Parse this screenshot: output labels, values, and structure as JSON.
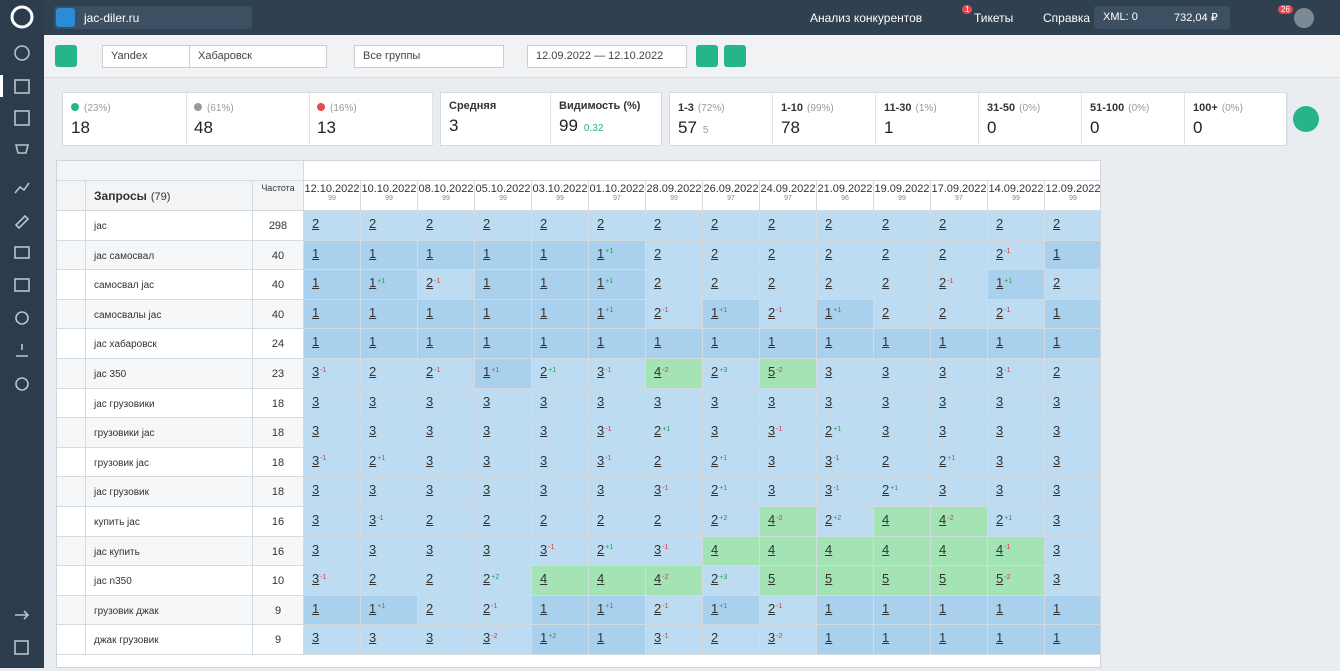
{
  "header": {
    "project": "jac-diler.ru",
    "nav": [
      "Анализ конкурентов",
      "Тикеты",
      "Справка"
    ],
    "tickets_badge": "1",
    "xml": "XML: 0",
    "balance": "732,04 ₽",
    "notifications_badge": "26"
  },
  "toolbar": {
    "engine": "Yandex",
    "region": "Хабаровск",
    "group": "Все группы",
    "period": "12.09.2022 — 12.10.2022"
  },
  "summary": {
    "dynamics": [
      {
        "percent": "(23%)",
        "value": "18"
      },
      {
        "percent": "(61%)",
        "value": "48"
      },
      {
        "percent": "(16%)",
        "value": "13"
      }
    ],
    "average": {
      "label": "Средняя",
      "value": "3"
    },
    "visibility": {
      "label": "Видимость (%)",
      "value": "99",
      "change": "0.32"
    },
    "ranges": [
      {
        "label": "1-3",
        "percent": "(72%)",
        "value": "57",
        "extra": "5"
      },
      {
        "label": "1-10",
        "percent": "(99%)",
        "value": "78"
      },
      {
        "label": "11-30",
        "percent": "(1%)",
        "value": "1"
      },
      {
        "label": "31-50",
        "percent": "(0%)",
        "value": "0"
      },
      {
        "label": "51-100",
        "percent": "(0%)",
        "value": "0"
      },
      {
        "label": "100+",
        "percent": "(0%)",
        "value": "0"
      }
    ]
  },
  "table": {
    "query_header": "Запросы",
    "query_count": "(79)",
    "frequency_header": "Частота",
    "dates": [
      {
        "date": "12.10.2022",
        "score": "99"
      },
      {
        "date": "10.10.2022",
        "score": "99"
      },
      {
        "date": "08.10.2022",
        "score": "99"
      },
      {
        "date": "05.10.2022",
        "score": "99"
      },
      {
        "date": "03.10.2022",
        "score": "99"
      },
      {
        "date": "01.10.2022",
        "score": "97"
      },
      {
        "date": "28.09.2022",
        "score": "99"
      },
      {
        "date": "26.09.2022",
        "score": "97"
      },
      {
        "date": "24.09.2022",
        "score": "97"
      },
      {
        "date": "21.09.2022",
        "score": "96"
      },
      {
        "date": "19.09.2022",
        "score": "99"
      },
      {
        "date": "17.09.2022",
        "score": "97"
      },
      {
        "date": "14.09.2022",
        "score": "99"
      },
      {
        "date": "12.09.2022",
        "score": "99"
      }
    ],
    "rows": [
      {
        "query": "jac",
        "frequency": "298",
        "positions": [
          2,
          2,
          2,
          2,
          2,
          2,
          2,
          2,
          2,
          2,
          2,
          2,
          2,
          2
        ],
        "changes": [
          null,
          null,
          null,
          null,
          null,
          null,
          null,
          null,
          null,
          null,
          null,
          null,
          null,
          null
        ]
      },
      {
        "query": "jac самосвал",
        "frequency": "40",
        "positions": [
          1,
          1,
          1,
          1,
          1,
          1,
          2,
          2,
          2,
          2,
          2,
          2,
          2,
          1
        ],
        "changes": [
          null,
          null,
          null,
          null,
          null,
          "+1",
          null,
          null,
          null,
          null,
          null,
          null,
          "-1",
          null
        ]
      },
      {
        "query": "самосвал jac",
        "frequency": "40",
        "positions": [
          1,
          1,
          2,
          1,
          1,
          1,
          2,
          2,
          2,
          2,
          2,
          2,
          1,
          2
        ],
        "changes": [
          null,
          "+1",
          "-1",
          null,
          null,
          "+1",
          null,
          null,
          null,
          null,
          null,
          "-1",
          "+1",
          null
        ]
      },
      {
        "query": "самосвалы jac",
        "frequency": "40",
        "positions": [
          1,
          1,
          1,
          1,
          1,
          1,
          2,
          1,
          2,
          1,
          2,
          2,
          2,
          1
        ],
        "changes": [
          null,
          null,
          null,
          null,
          null,
          "+1",
          "-1",
          "+1",
          "-1",
          "+1",
          null,
          null,
          "-1",
          null
        ]
      },
      {
        "query": "jac хабаровск",
        "frequency": "24",
        "positions": [
          1,
          1,
          1,
          1,
          1,
          1,
          1,
          1,
          1,
          1,
          1,
          1,
          1,
          1
        ],
        "changes": [
          null,
          null,
          null,
          null,
          null,
          null,
          null,
          null,
          null,
          null,
          null,
          null,
          null,
          null
        ]
      },
      {
        "query": "jac 350",
        "frequency": "23",
        "positions": [
          3,
          2,
          2,
          1,
          2,
          3,
          4,
          2,
          5,
          3,
          3,
          3,
          3,
          2
        ],
        "changes": [
          "-1",
          null,
          "-1",
          "+1",
          "+1",
          "-1",
          "-2",
          "+3",
          "-2",
          null,
          null,
          null,
          "-1",
          null
        ]
      },
      {
        "query": "jac грузовики",
        "frequency": "18",
        "positions": [
          3,
          3,
          3,
          3,
          3,
          3,
          3,
          3,
          3,
          3,
          3,
          3,
          3,
          3
        ],
        "changes": [
          null,
          null,
          null,
          null,
          null,
          null,
          null,
          null,
          null,
          null,
          null,
          null,
          null,
          null
        ]
      },
      {
        "query": "грузовики jac",
        "frequency": "18",
        "positions": [
          3,
          3,
          3,
          3,
          3,
          3,
          2,
          3,
          3,
          2,
          3,
          3,
          3,
          3
        ],
        "changes": [
          null,
          null,
          null,
          null,
          null,
          "-1",
          "+1",
          null,
          "-1",
          "+1",
          null,
          null,
          null,
          null
        ]
      },
      {
        "query": "грузовик jac",
        "frequency": "18",
        "positions": [
          3,
          2,
          3,
          3,
          3,
          3,
          2,
          2,
          3,
          3,
          2,
          2,
          3,
          3
        ],
        "changes": [
          "-1",
          "+1",
          null,
          null,
          null,
          "-1",
          null,
          "+1",
          null,
          "-1",
          null,
          "+1",
          null,
          null
        ]
      },
      {
        "query": "jac грузовик",
        "frequency": "18",
        "positions": [
          3,
          3,
          3,
          3,
          3,
          3,
          3,
          2,
          3,
          3,
          2,
          3,
          3,
          3
        ],
        "changes": [
          null,
          null,
          null,
          null,
          null,
          null,
          "-1",
          "+1",
          null,
          "-1",
          "+1",
          null,
          null,
          null
        ]
      },
      {
        "query": "купить jac",
        "frequency": "16",
        "positions": [
          3,
          3,
          2,
          2,
          2,
          2,
          2,
          2,
          4,
          2,
          4,
          4,
          2,
          3
        ],
        "changes": [
          null,
          "-1",
          null,
          null,
          null,
          null,
          null,
          "+2",
          "-2",
          "+2",
          null,
          "-2",
          "+1",
          null
        ]
      },
      {
        "query": "jac купить",
        "frequency": "16",
        "positions": [
          3,
          3,
          3,
          3,
          3,
          2,
          3,
          4,
          4,
          4,
          4,
          4,
          4,
          3
        ],
        "changes": [
          null,
          null,
          null,
          null,
          "-1",
          "+1",
          "-1",
          null,
          null,
          null,
          null,
          null,
          "-1",
          null
        ]
      },
      {
        "query": "jac n350",
        "frequency": "10",
        "positions": [
          3,
          2,
          2,
          2,
          4,
          4,
          4,
          2,
          5,
          5,
          5,
          5,
          5,
          3
        ],
        "changes": [
          "-1",
          null,
          null,
          "+2",
          null,
          null,
          "-2",
          "+3",
          null,
          null,
          null,
          null,
          "-2",
          null
        ]
      },
      {
        "query": "грузовик джак",
        "frequency": "9",
        "positions": [
          1,
          1,
          2,
          2,
          1,
          1,
          2,
          1,
          2,
          1,
          1,
          1,
          1,
          1
        ],
        "changes": [
          null,
          "+1",
          null,
          "-1",
          null,
          "+1",
          "-1",
          "+1",
          "-1",
          null,
          null,
          null,
          null,
          null
        ]
      },
      {
        "query": "джак грузовик",
        "frequency": "9",
        "positions": [
          3,
          3,
          3,
          3,
          1,
          1,
          3,
          2,
          3,
          1,
          1,
          1,
          1,
          1
        ],
        "changes": [
          null,
          null,
          null,
          "-2",
          "+2",
          null,
          "-1",
          null,
          "-2",
          null,
          null,
          null,
          null,
          null
        ]
      }
    ]
  }
}
